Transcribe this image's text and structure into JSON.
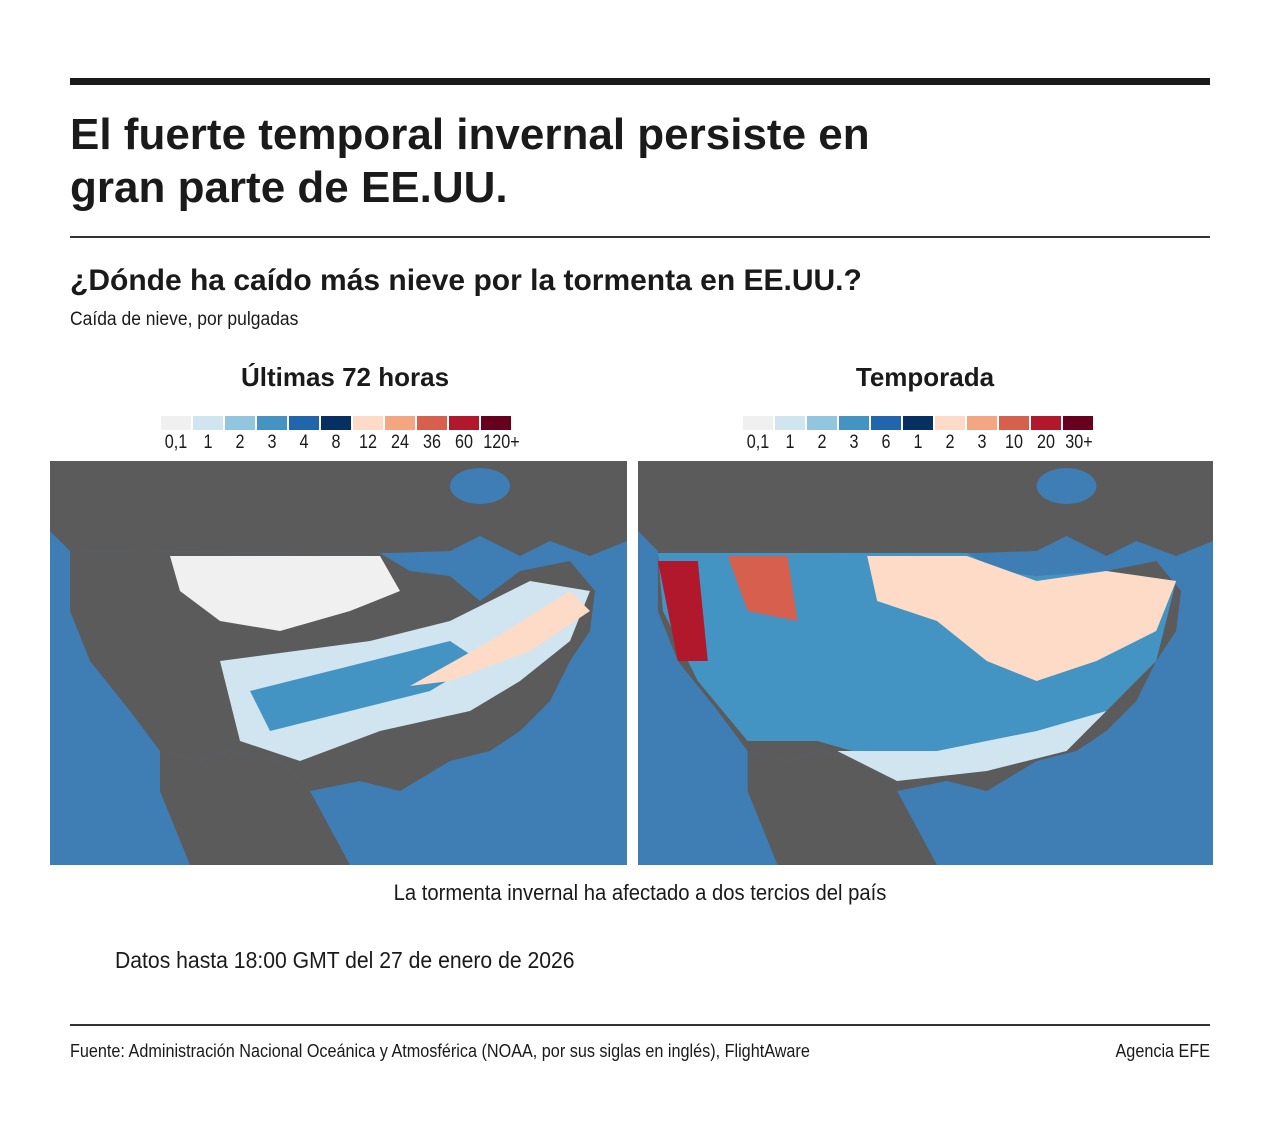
{
  "title": "El fuerte temporal invernal persiste en gran parte de EE.UU.",
  "subtitle": "¿Dónde ha caído más nieve por la tormenta en EE.UU.?",
  "unit_note": "Caída de nieve, por pulgadas",
  "colors": {
    "ocean": "#3f7db5",
    "land": "#5b5b5b",
    "legend": [
      "#f0f0f0",
      "#d1e5f0",
      "#92c5de",
      "#4393c3",
      "#2166ac",
      "#053061",
      "#fddbc7",
      "#f4a582",
      "#d6604d",
      "#b2182b",
      "#67001f"
    ]
  },
  "panels": [
    {
      "title": "Últimas 72 horas",
      "legend_labels": [
        "0,1",
        "1",
        "2",
        "3",
        "4",
        "8",
        "12",
        "24",
        "36",
        "60",
        "120+"
      ]
    },
    {
      "title": "Temporada",
      "legend_labels": [
        "0,1",
        "1",
        "2",
        "3",
        "6",
        "1",
        "2",
        "3",
        "10",
        "20",
        "30+"
      ]
    }
  ],
  "caption": "La tormenta invernal ha afectado a dos tercios del país",
  "date_note": "Datos hasta 18:00 GMT del 27 de enero de 2026",
  "source": "Fuente: Administración Nacional Oceánica y Atmosférica (NOAA, por sus siglas en inglés), FlightAware",
  "credit": "Agencia EFE"
}
